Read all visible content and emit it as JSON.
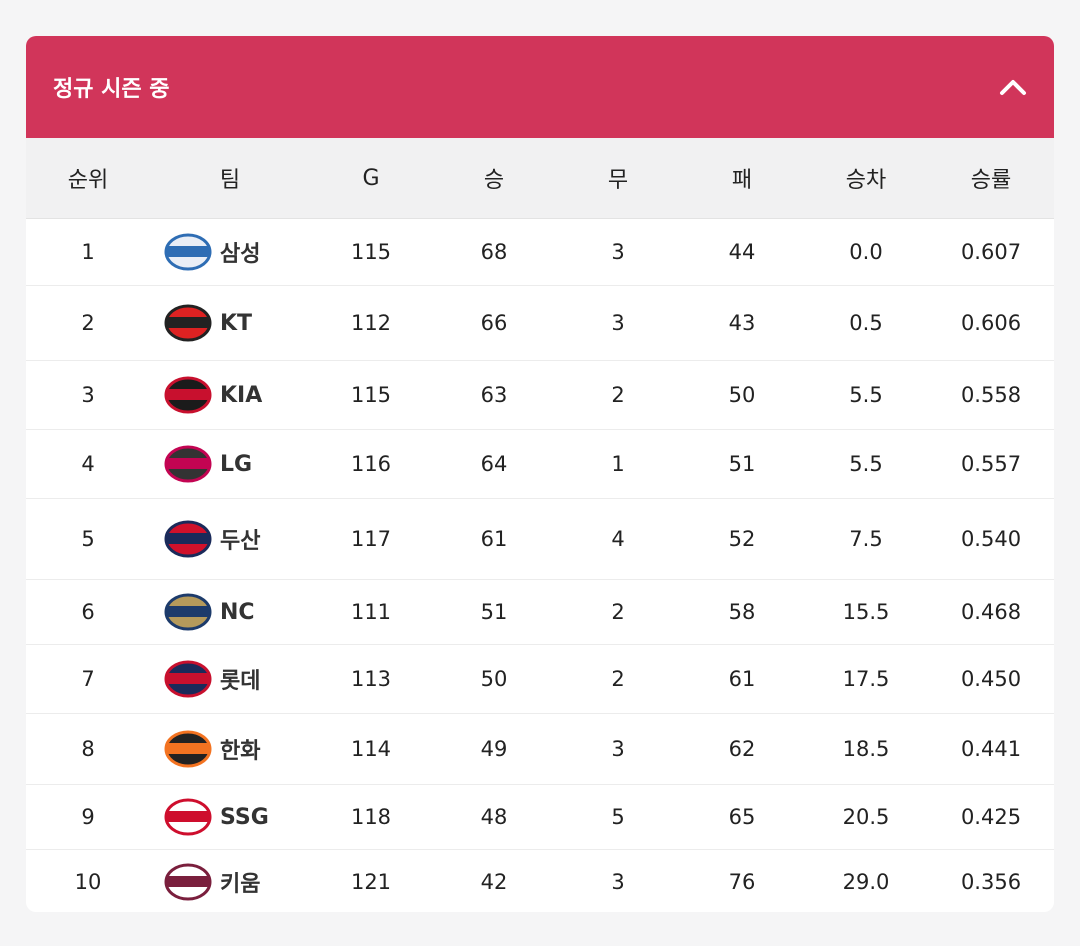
{
  "header": {
    "title": "정규 시즌 중"
  },
  "table": {
    "columns": [
      "순위",
      "팀",
      "G",
      "승",
      "무",
      "패",
      "승차",
      "승률"
    ],
    "rows": [
      [
        "1",
        "삼성",
        "115",
        "68",
        "3",
        "44",
        "0.0",
        "0.607"
      ],
      [
        "2",
        "KT",
        "112",
        "66",
        "3",
        "43",
        "0.5",
        "0.606"
      ],
      [
        "3",
        "KIA",
        "115",
        "63",
        "2",
        "50",
        "5.5",
        "0.558"
      ],
      [
        "4",
        "LG",
        "116",
        "64",
        "1",
        "51",
        "5.5",
        "0.557"
      ],
      [
        "5",
        "두산",
        "117",
        "61",
        "4",
        "52",
        "7.5",
        "0.540"
      ],
      [
        "6",
        "NC",
        "111",
        "51",
        "2",
        "58",
        "15.5",
        "0.468"
      ],
      [
        "7",
        "롯데",
        "113",
        "50",
        "2",
        "61",
        "17.5",
        "0.450"
      ],
      [
        "8",
        "한화",
        "114",
        "49",
        "3",
        "62",
        "18.5",
        "0.441"
      ],
      [
        "9",
        "SSG",
        "118",
        "48",
        "5",
        "65",
        "20.5",
        "0.425"
      ],
      [
        "10",
        "키움",
        "121",
        "42",
        "3",
        "76",
        "29.0",
        "0.356"
      ]
    ]
  }
}
